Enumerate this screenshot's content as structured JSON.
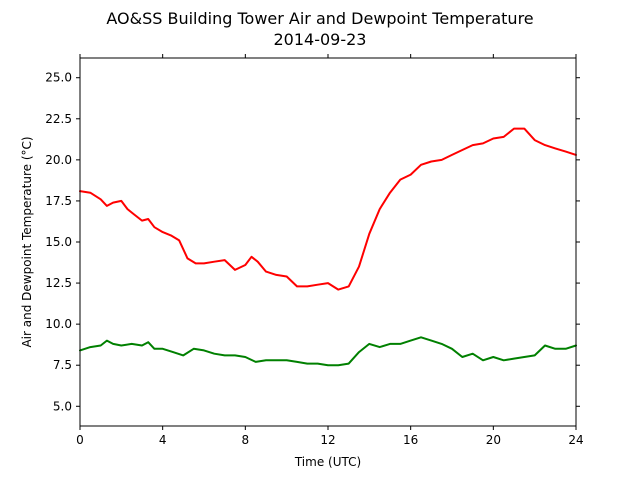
{
  "chart_data": {
    "type": "line",
    "title": "AO&SS Building Tower Air and Dewpoint Temperature",
    "subtitle": "2014-09-23",
    "xlabel": "Time (UTC)",
    "ylabel": "Air and Dewpoint Temperature (°C)",
    "xlim": [
      0,
      24
    ],
    "ylim": [
      3.8,
      26.2
    ],
    "xticks": [
      0,
      4,
      8,
      12,
      16,
      20,
      24
    ],
    "yticks": [
      5.0,
      7.5,
      10.0,
      12.5,
      15.0,
      17.5,
      20.0,
      22.5,
      25.0
    ],
    "xtick_labels": [
      "0",
      "4",
      "8",
      "12",
      "16",
      "20",
      "24"
    ],
    "ytick_labels": [
      "5.0",
      "7.5",
      "10.0",
      "12.5",
      "15.0",
      "17.5",
      "20.0",
      "22.5",
      "25.0"
    ],
    "grid": false,
    "series": [
      {
        "color": "#ff0000",
        "x": [
          0,
          0.5,
          1.0,
          1.3,
          1.6,
          2.0,
          2.3,
          2.6,
          3.0,
          3.3,
          3.6,
          4.0,
          4.4,
          4.8,
          5.2,
          5.6,
          6.0,
          6.5,
          7.0,
          7.5,
          8.0,
          8.3,
          8.6,
          9.0,
          9.5,
          10.0,
          10.5,
          11.0,
          11.5,
          12.0,
          12.5,
          13.0,
          13.5,
          14.0,
          14.5,
          15.0,
          15.5,
          16.0,
          16.5,
          17.0,
          17.5,
          18.0,
          18.5,
          19.0,
          19.5,
          20.0,
          20.5,
          21.0,
          21.5,
          22.0,
          22.5,
          23.0,
          23.5,
          24.0
        ],
        "y": [
          18.1,
          18.0,
          17.6,
          17.2,
          17.4,
          17.5,
          17.0,
          16.7,
          16.3,
          16.4,
          15.9,
          15.6,
          15.4,
          15.1,
          14.0,
          13.7,
          13.7,
          13.8,
          13.9,
          13.3,
          13.6,
          14.1,
          13.8,
          13.2,
          13.0,
          12.9,
          12.3,
          12.3,
          12.4,
          12.5,
          12.1,
          12.3,
          13.5,
          15.5,
          17.0,
          18.0,
          18.8,
          19.1,
          19.7,
          19.9,
          20.0,
          20.3,
          20.6,
          20.9,
          21.0,
          21.3,
          21.4,
          21.9,
          21.9,
          21.2,
          20.9,
          20.7,
          20.5,
          20.3
        ]
      },
      {
        "color": "#008000",
        "x": [
          0,
          0.5,
          1.0,
          1.3,
          1.6,
          2.0,
          2.5,
          3.0,
          3.3,
          3.6,
          4.0,
          4.5,
          5.0,
          5.5,
          6.0,
          6.5,
          7.0,
          7.5,
          8.0,
          8.5,
          9.0,
          9.5,
          10.0,
          10.5,
          11.0,
          11.5,
          12.0,
          12.5,
          13.0,
          13.5,
          14.0,
          14.5,
          15.0,
          15.5,
          16.0,
          16.5,
          17.0,
          17.5,
          18.0,
          18.5,
          19.0,
          19.5,
          20.0,
          20.5,
          21.0,
          21.5,
          22.0,
          22.5,
          23.0,
          23.5,
          24.0
        ],
        "y": [
          8.4,
          8.6,
          8.7,
          9.0,
          8.8,
          8.7,
          8.8,
          8.7,
          8.9,
          8.5,
          8.5,
          8.3,
          8.1,
          8.5,
          8.4,
          8.2,
          8.1,
          8.1,
          8.0,
          7.7,
          7.8,
          7.8,
          7.8,
          7.7,
          7.6,
          7.6,
          7.5,
          7.5,
          7.6,
          8.3,
          8.8,
          8.6,
          8.8,
          8.8,
          9.0,
          9.2,
          9.0,
          8.8,
          8.5,
          8.0,
          8.2,
          7.8,
          8.0,
          7.8,
          7.9,
          8.0,
          8.1,
          8.7,
          8.5,
          8.5,
          8.7
        ]
      }
    ]
  }
}
